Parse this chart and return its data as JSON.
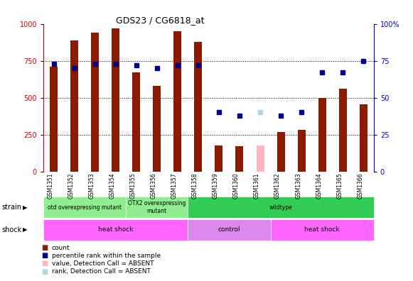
{
  "title": "GDS23 / CG6818_at",
  "samples": [
    "GSM1351",
    "GSM1352",
    "GSM1353",
    "GSM1354",
    "GSM1355",
    "GSM1356",
    "GSM1357",
    "GSM1358",
    "GSM1359",
    "GSM1360",
    "GSM1361",
    "GSM1362",
    "GSM1363",
    "GSM1364",
    "GSM1365",
    "GSM1366"
  ],
  "bar_values": [
    710,
    890,
    940,
    970,
    670,
    580,
    950,
    880,
    175,
    170,
    175,
    265,
    280,
    500,
    560,
    455
  ],
  "bar_absent": [
    false,
    false,
    false,
    false,
    false,
    false,
    false,
    false,
    false,
    false,
    true,
    false,
    false,
    false,
    false,
    false
  ],
  "dot_values": [
    73,
    70,
    73,
    73,
    72,
    70,
    72,
    72,
    40,
    38,
    40,
    38,
    40,
    67,
    67,
    75
  ],
  "dot_absent": [
    false,
    false,
    false,
    false,
    false,
    false,
    false,
    false,
    false,
    false,
    true,
    false,
    false,
    false,
    false,
    false
  ],
  "ylim_left": [
    0,
    1000
  ],
  "ylim_right": [
    0,
    100
  ],
  "bar_color": "#8B1A00",
  "bar_absent_color": "#FFB6C1",
  "dot_color": "#00008B",
  "dot_absent_color": "#ADD8E6",
  "grid_values": [
    250,
    500,
    750
  ],
  "strain_groups": [
    {
      "label": "otd overexpressing mutant",
      "start": 0,
      "end": 4,
      "color": "#90EE90"
    },
    {
      "label": "OTX2 overexpressing\nmutant",
      "start": 4,
      "end": 7,
      "color": "#90EE90"
    },
    {
      "label": "wildtype",
      "start": 7,
      "end": 16,
      "color": "#33CC55"
    }
  ],
  "shock_groups": [
    {
      "label": "heat shock",
      "start": 0,
      "end": 7,
      "color": "#FF66FF"
    },
    {
      "label": "control",
      "start": 7,
      "end": 11,
      "color": "#DD88EE"
    },
    {
      "label": "heat shock",
      "start": 11,
      "end": 16,
      "color": "#FF66FF"
    }
  ],
  "legend_items": [
    {
      "label": "count",
      "color": "#8B1A00"
    },
    {
      "label": "percentile rank within the sample",
      "color": "#00008B"
    },
    {
      "label": "value, Detection Call = ABSENT",
      "color": "#FFB6C1"
    },
    {
      "label": "rank, Detection Call = ABSENT",
      "color": "#ADD8E6"
    }
  ]
}
